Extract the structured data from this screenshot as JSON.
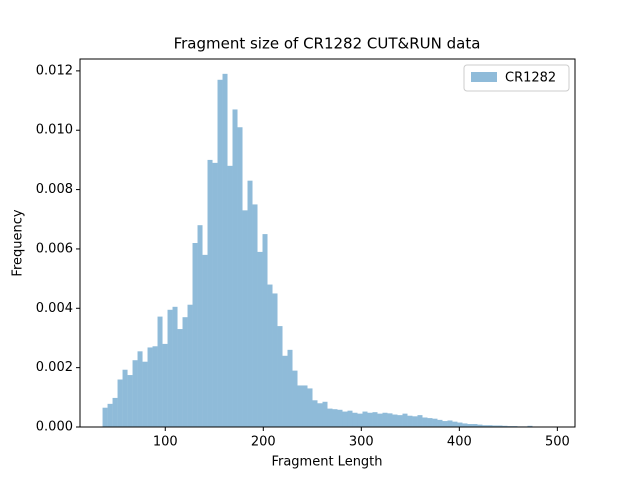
{
  "chart_data": {
    "type": "histogram",
    "title": "Fragment size of CR1282 CUT&RUN data",
    "xlabel": "Fragment Length",
    "ylabel": "Frequency",
    "bins": [
      36,
      41.1,
      46.2,
      51.3,
      56.4,
      61.5,
      66.6,
      71.7,
      76.8,
      81.9,
      87,
      92.1,
      97.2,
      102.3,
      107.4,
      112.5,
      117.6,
      122.7,
      127.8,
      132.9,
      138,
      143.1,
      148.2,
      153.3,
      158.4,
      163.5,
      168.6,
      173.7,
      178.8,
      183.9,
      189,
      194.1,
      199.2,
      204.3,
      209.4,
      214.5,
      219.6,
      224.7,
      229.8,
      234.9,
      240,
      245.1,
      250.2,
      255.3,
      260.4,
      265.5,
      270.6,
      275.7,
      280.8,
      285.9,
      291,
      296.1,
      301.2,
      306.3,
      311.4,
      316.5,
      321.6,
      326.7,
      331.8,
      336.9,
      342,
      347.1,
      352.2,
      357.3,
      362.4,
      367.5,
      372.6,
      377.7,
      382.8,
      387.9,
      393,
      398.1,
      403.2,
      408.3,
      413.4,
      418.5,
      423.6,
      428.7,
      433.8,
      438.9,
      444,
      449.1,
      454.2,
      459.3,
      464.4,
      469.5,
      474.6,
      479.7,
      484.8,
      489.9,
      495
    ],
    "series": [
      {
        "name": "CR1282",
        "color": "#8fbbd9",
        "values": [
          0.00065,
          0.00078,
          0.00098,
          0.0016,
          0.00193,
          0.00175,
          0.00225,
          0.00255,
          0.0022,
          0.00268,
          0.00272,
          0.00372,
          0.0028,
          0.00395,
          0.00405,
          0.0033,
          0.0037,
          0.00412,
          0.0062,
          0.0068,
          0.0058,
          0.009,
          0.0089,
          0.0117,
          0.0119,
          0.0088,
          0.0107,
          0.0101,
          0.0073,
          0.0083,
          0.0075,
          0.0059,
          0.0065,
          0.0048,
          0.0045,
          0.0034,
          0.0024,
          0.0026,
          0.0019,
          0.0014,
          0.0014,
          0.0013,
          0.0009,
          0.0008,
          0.00085,
          0.00062,
          0.0006,
          0.00058,
          0.00052,
          0.00055,
          0.00048,
          0.00045,
          0.00052,
          0.00048,
          0.0005,
          0.00045,
          0.00048,
          0.00046,
          0.00042,
          0.0004,
          0.00045,
          0.00038,
          0.00036,
          0.0004,
          0.00032,
          0.0003,
          0.00028,
          0.00024,
          0.0002,
          0.00022,
          0.00018,
          0.00015,
          0.00012,
          0.0001,
          0.0001,
          8e-05,
          6e-05,
          6e-05,
          5e-05,
          5e-05,
          4e-05,
          3e-05,
          3e-05,
          2e-05,
          2e-05,
          4e-05,
          1e-05,
          1e-05,
          1e-05,
          1e-05
        ]
      }
    ],
    "xlim": [
      13,
      518
    ],
    "xticks": [
      100,
      200,
      300,
      400,
      500
    ],
    "ylim": [
      0,
      0.0124
    ],
    "yticks": [
      {
        "value": 0,
        "label": "0.000"
      },
      {
        "value": 0.002,
        "label": "0.002"
      },
      {
        "value": 0.004,
        "label": "0.004"
      },
      {
        "value": 0.006,
        "label": "0.006"
      },
      {
        "value": 0.008,
        "label": "0.008"
      },
      {
        "value": 0.01,
        "label": "0.010"
      },
      {
        "value": 0.012,
        "label": "0.012"
      }
    ],
    "legend": "upper right"
  }
}
